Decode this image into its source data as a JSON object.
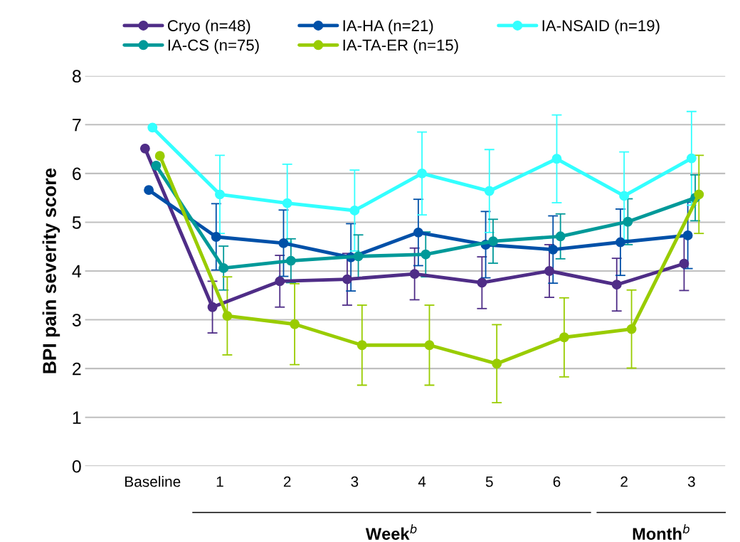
{
  "chart_data": {
    "type": "line",
    "ylabel": "BPI pain severity score",
    "categories": [
      "Baseline",
      "1",
      "2",
      "3",
      "4",
      "5",
      "6",
      "2",
      "3"
    ],
    "series": [
      {
        "name": "Cryo (n=48)",
        "color": "#4f2d87",
        "values": [
          6.51,
          3.26,
          3.79,
          3.83,
          3.94,
          3.76,
          4.0,
          3.72,
          4.15
        ],
        "errors": [
          null,
          0.53,
          0.53,
          0.53,
          0.53,
          0.53,
          0.54,
          0.54,
          0.55
        ]
      },
      {
        "name": "IA-HA (n=21)",
        "color": "#0050a8",
        "values": [
          5.66,
          4.7,
          4.57,
          4.28,
          4.79,
          4.54,
          4.44,
          4.59,
          4.73
        ],
        "errors": [
          null,
          0.68,
          0.68,
          0.69,
          0.68,
          0.68,
          0.69,
          0.68,
          0.68
        ]
      },
      {
        "name": "IA-NSAID (n=19)",
        "color": "#33ffff",
        "values": [
          6.94,
          5.57,
          5.39,
          5.24,
          6.0,
          5.64,
          6.3,
          5.54,
          6.31
        ],
        "errors": [
          null,
          0.8,
          0.8,
          0.83,
          0.85,
          0.85,
          0.9,
          0.9,
          0.96
        ]
      },
      {
        "name": "IA-CS (n=75)",
        "color": "#009999",
        "values": [
          6.16,
          4.06,
          4.21,
          4.3,
          4.34,
          4.61,
          4.71,
          5.01,
          5.5
        ],
        "errors": [
          null,
          0.45,
          0.45,
          0.44,
          0.46,
          0.45,
          0.46,
          0.47,
          0.47
        ]
      },
      {
        "name": "IA-TA-ER (n=15)",
        "color": "#99cc00",
        "values": [
          6.36,
          3.08,
          2.91,
          2.48,
          2.48,
          2.1,
          2.64,
          2.81,
          5.57
        ],
        "errors": [
          null,
          0.8,
          0.83,
          0.82,
          0.82,
          0.8,
          0.81,
          0.8,
          0.8
        ]
      }
    ],
    "annotations": [
      "Week$^{b}$",
      "Month$^{b}$"
    ],
    "ylim": [
      0,
      8
    ],
    "yticks": [
      0,
      1,
      2,
      3,
      4,
      5,
      6,
      7,
      8
    ],
    "grid": "y",
    "legend": "top",
    "marker": "circle",
    "line_style": "solid"
  }
}
